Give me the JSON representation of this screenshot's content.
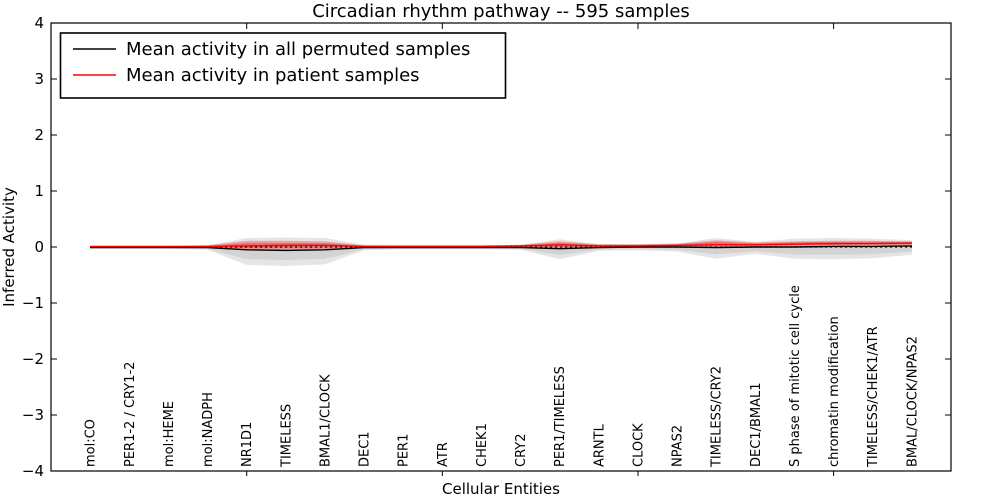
{
  "chart_data": {
    "type": "line",
    "title": "Circadian rhythm pathway -- 595 samples",
    "xlabel": "Cellular Entities",
    "ylabel": "Inferred Activity",
    "ylim": [
      -4,
      4
    ],
    "grid": false,
    "ytick_values": [
      4,
      3,
      2,
      1,
      0,
      -1,
      -2,
      -3,
      -4
    ],
    "ytick_labels": [
      "4",
      "3",
      "2",
      "1",
      "0",
      "−1",
      "−2",
      "−3",
      "−4"
    ],
    "xtick_major_values": [
      5,
      10,
      15,
      20
    ],
    "categories": [
      "mol:CO",
      "PER1-2 / CRY1-2",
      "mol:HEME",
      "mol:NADPH",
      "NR1D1",
      "TIMELESS",
      "BMAL1/CLOCK",
      "DEC1",
      "PER1",
      "ATR",
      "CHEK1",
      "CRY2",
      "PER1/TIMELESS",
      "ARNTL",
      "CLOCK",
      "NPAS2",
      "TIMELESS/CRY2",
      "DEC1/BMAL1",
      "S phase of mitotic cell cycle",
      "chromatin modification",
      "TIMELESS/CHEK1/ATR",
      "BMAL/CLOCK/NPAS2"
    ],
    "legend": {
      "position": "upper left",
      "entries": [
        {
          "label": "Mean activity in all permuted samples",
          "color": "#000000"
        },
        {
          "label": "Mean activity in patient samples",
          "color": "#ff0000"
        }
      ]
    },
    "zero_line": {
      "y": 0,
      "style": "dotted",
      "color": "#000000"
    },
    "series": [
      {
        "name": "Mean activity in all permuted samples",
        "color": "#000000",
        "values": [
          -0.01,
          -0.01,
          -0.01,
          -0.01,
          -0.05,
          -0.06,
          -0.05,
          -0.01,
          -0.01,
          -0.01,
          -0.01,
          -0.01,
          -0.03,
          -0.01,
          0.0,
          0.0,
          -0.01,
          0.0,
          0.0,
          0.01,
          0.01,
          0.02
        ]
      },
      {
        "name": "Mean activity in patient samples",
        "color": "#ff0000",
        "values": [
          0.01,
          0.01,
          0.01,
          0.01,
          0.02,
          0.03,
          0.03,
          0.01,
          0.01,
          0.01,
          0.01,
          0.02,
          0.04,
          0.02,
          0.02,
          0.03,
          0.04,
          0.04,
          0.05,
          0.06,
          0.06,
          0.07
        ]
      }
    ],
    "bands": [
      {
        "name": "permuted samples spread",
        "color": "#000000",
        "opacity": 0.1,
        "top": [
          0.02,
          0.02,
          0.02,
          0.03,
          0.16,
          0.17,
          0.16,
          0.04,
          0.03,
          0.03,
          0.03,
          0.04,
          0.14,
          0.05,
          0.05,
          0.06,
          0.16,
          0.09,
          0.15,
          0.16,
          0.15,
          0.12
        ],
        "bottom": [
          -0.03,
          -0.03,
          -0.03,
          -0.05,
          -0.32,
          -0.34,
          -0.31,
          -0.06,
          -0.04,
          -0.04,
          -0.04,
          -0.05,
          -0.22,
          -0.07,
          -0.06,
          -0.08,
          -0.21,
          -0.12,
          -0.21,
          -0.22,
          -0.2,
          -0.14
        ]
      },
      {
        "name": "patient samples spread",
        "color": "#ff0000",
        "opacity": 0.28,
        "top": [
          0.02,
          0.02,
          0.02,
          0.03,
          0.11,
          0.11,
          0.1,
          0.03,
          0.03,
          0.03,
          0.03,
          0.04,
          0.1,
          0.05,
          0.05,
          0.06,
          0.12,
          0.08,
          0.1,
          0.11,
          0.11,
          0.1
        ],
        "bottom": [
          -0.01,
          -0.01,
          -0.01,
          -0.02,
          -0.05,
          -0.05,
          -0.04,
          -0.01,
          -0.01,
          -0.01,
          -0.01,
          -0.01,
          -0.02,
          -0.01,
          0.0,
          0.0,
          0.0,
          0.01,
          0.02,
          0.02,
          0.03,
          0.04
        ]
      }
    ]
  }
}
